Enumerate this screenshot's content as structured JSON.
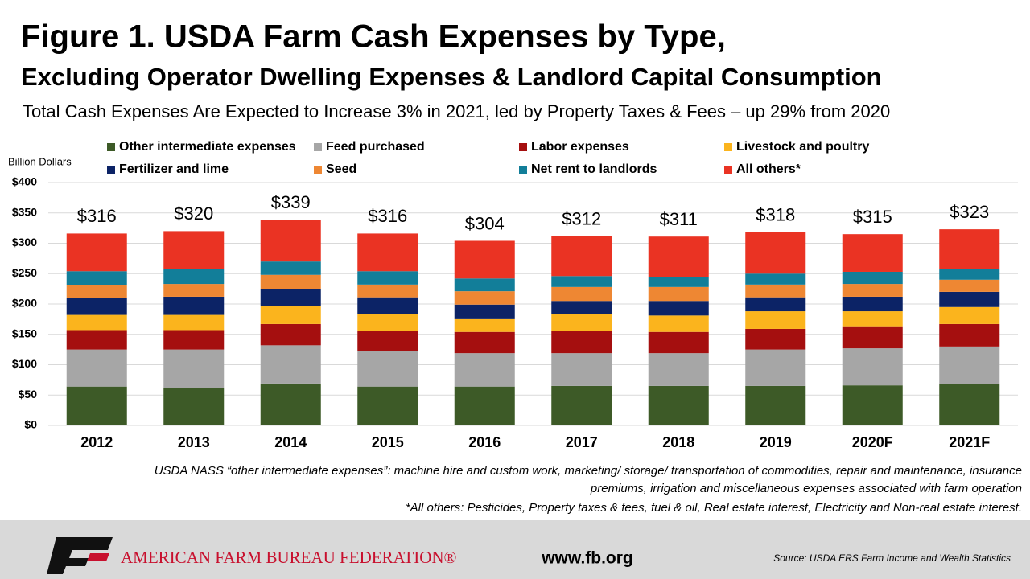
{
  "chart_data": {
    "type": "stacked_bar",
    "title": "Figure 1. USDA Farm Cash Expenses by Type,",
    "subtitle": "Excluding Operator Dwelling Expenses & Landlord Capital Consumption",
    "description": "Total Cash Expenses Are Expected to Increase 3% in 2021, led by Property Taxes & Fees – up 29% from 2020",
    "y_label": "Billion Dollars",
    "categories": [
      "2012",
      "2013",
      "2014",
      "2015",
      "2016",
      "2017",
      "2018",
      "2019",
      "2020F",
      "2021F"
    ],
    "series": [
      {
        "name": "Other intermediate expenses",
        "color": "#3d5a27",
        "values": [
          64,
          62,
          69,
          64,
          64,
          65,
          65,
          65,
          66,
          68
        ]
      },
      {
        "name": "Feed purchased",
        "color": "#a6a6a6",
        "values": [
          61,
          63,
          63,
          59,
          55,
          54,
          54,
          60,
          61,
          62
        ]
      },
      {
        "name": "Labor expenses",
        "color": "#a50f0f",
        "values": [
          32,
          32,
          35,
          32,
          35,
          36,
          35,
          34,
          35,
          37
        ]
      },
      {
        "name": "Livestock and poultry",
        "color": "#fbb41d",
        "values": [
          25,
          25,
          30,
          29,
          21,
          28,
          27,
          29,
          26,
          28
        ]
      },
      {
        "name": "Fertilizer and lime",
        "color": "#0c2366",
        "values": [
          28,
          30,
          28,
          27,
          24,
          22,
          24,
          23,
          24,
          25
        ]
      },
      {
        "name": "Seed",
        "color": "#ee8733",
        "values": [
          21,
          21,
          23,
          21,
          22,
          23,
          23,
          21,
          21,
          20
        ]
      },
      {
        "name": "Net rent to landlords",
        "color": "#127e99",
        "values": [
          23,
          25,
          22,
          22,
          21,
          18,
          16,
          18,
          20,
          18
        ]
      },
      {
        "name": "All others*",
        "color": "#ea3323",
        "values": [
          62,
          62,
          69,
          62,
          62,
          66,
          67,
          68,
          62,
          65
        ]
      }
    ],
    "totals": [
      316,
      320,
      339,
      316,
      304,
      312,
      311,
      318,
      315,
      323
    ],
    "total_labels": [
      "$316",
      "$320",
      "$339",
      "$316",
      "$304",
      "$312",
      "$311",
      "$318",
      "$315",
      "$323"
    ],
    "ylim": [
      0,
      400
    ],
    "yticks": [
      {
        "value": 0,
        "label": "$0"
      },
      {
        "value": 50,
        "label": "$50"
      },
      {
        "value": 100,
        "label": "$100"
      },
      {
        "value": 150,
        "label": "$150"
      },
      {
        "value": 200,
        "label": "$200"
      },
      {
        "value": 250,
        "label": "$250"
      },
      {
        "value": 300,
        "label": "$300"
      },
      {
        "value": 350,
        "label": "$350"
      },
      {
        "value": 400,
        "label": "$400"
      }
    ],
    "grid": true,
    "footnotes": [
      "USDA NASS “other intermediate expenses”: machine hire and custom work, marketing/ storage/ transportation of commodities, repair and maintenance, insurance",
      "premiums, irrigation and miscellaneous expenses associated with farm operation",
      "*All others: Pesticides, Property taxes & fees, fuel & oil, Real estate interest, Electricity and Non-real estate interest."
    ],
    "footer": {
      "organization": "AMERICAN FARM BUREAU FEDERATION®",
      "website": "www.fb.org",
      "source": "Source: USDA ERS Farm Income and Wealth Statistics"
    }
  }
}
